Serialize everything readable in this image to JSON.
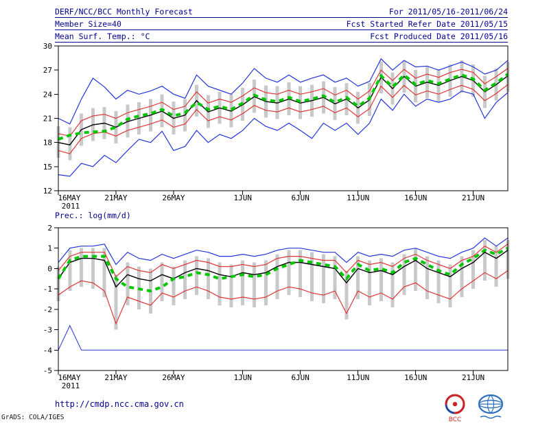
{
  "header": {
    "rows": [
      {
        "left": "DERF/NCC/BCC Monthly Forecast",
        "right": "For 2011/05/16-2011/06/24"
      },
      {
        "left": "Member Size=40",
        "right": "Fcst Started Refer Date 2011/05/15"
      },
      {
        "left": "Mean Surf. Temp.: °C",
        "right": "Fcst Produced Date 2011/05/16"
      }
    ]
  },
  "footer": {
    "url": "http://cmdp.ncc.cma.gov.cn",
    "credit": "GrADS: COLA/IGES",
    "bcc_label": "BCC"
  },
  "colors": {
    "header_text": "#000090",
    "ensemble_max_min": "#2233dd",
    "quartile_lines": "#e03535",
    "ensemble_mean": "#000000",
    "climatology_dashes": "#00c800",
    "spread_bars": "#c9c9c9"
  },
  "chart_data": [
    {
      "type": "line",
      "name": "temperature",
      "title": "Mean Surf. Temp.: °C",
      "ylim": [
        12,
        30
      ],
      "yticks": [
        30,
        27,
        24,
        21,
        18,
        15,
        12
      ],
      "x_count": 40,
      "x_range_note": "daily values 16 May 2011 through 24 Jun 2011",
      "xticks": [
        {
          "i": 0,
          "label": "16MAY",
          "sub": "2011"
        },
        {
          "i": 5,
          "label": "21MAY"
        },
        {
          "i": 10,
          "label": "26MAY"
        },
        {
          "i": 16,
          "label": "1JUN"
        },
        {
          "i": 21,
          "label": "6JUN"
        },
        {
          "i": 26,
          "label": "11JUN"
        },
        {
          "i": 31,
          "label": "16JUN"
        },
        {
          "i": 36,
          "label": "21JUN"
        }
      ],
      "bars": {
        "top": [
          20.0,
          19.9,
          21.6,
          22.3,
          22.4,
          21.9,
          22.7,
          23.0,
          23.4,
          24.0,
          23.1,
          23.4,
          25.2,
          23.9,
          24.3,
          24.0,
          24.8,
          25.8,
          25.1,
          25.0,
          25.5,
          25.0,
          25.2,
          25.6,
          24.9,
          25.4,
          24.3,
          25.4,
          28.1,
          26.7,
          28.2,
          27.0,
          27.5,
          27.1,
          27.7,
          28.2,
          27.7,
          26.3,
          27.2,
          28.0
        ],
        "bottom": [
          16.1,
          15.8,
          17.6,
          18.2,
          18.4,
          17.9,
          18.6,
          19.0,
          19.4,
          19.9,
          19.0,
          19.4,
          21.2,
          19.8,
          20.3,
          19.9,
          20.7,
          21.7,
          21.1,
          20.9,
          21.4,
          20.9,
          21.2,
          21.6,
          20.8,
          21.4,
          20.3,
          21.3,
          24.1,
          22.7,
          24.2,
          23.0,
          23.5,
          23.1,
          23.7,
          24.2,
          23.7,
          22.3,
          23.2,
          24.3
        ]
      },
      "series": [
        {
          "name": "ensemble-max",
          "color": "#2233dd",
          "width": 1.2,
          "values": [
            21.0,
            20.3,
            23.4,
            26.0,
            24.9,
            23.4,
            24.5,
            24.0,
            24.4,
            25.0,
            24.0,
            23.5,
            26.4,
            25.0,
            24.5,
            24.0,
            25.4,
            27.2,
            26.0,
            25.5,
            26.4,
            25.5,
            26.0,
            26.4,
            25.5,
            26.0,
            25.0,
            25.6,
            28.4,
            27.0,
            28.2,
            27.4,
            27.5,
            27.0,
            27.5,
            28.0,
            27.4,
            26.5,
            27.0,
            28.2
          ]
        },
        {
          "name": "ensemble-min",
          "color": "#2233dd",
          "width": 1.2,
          "values": [
            14.0,
            13.8,
            15.4,
            15.0,
            16.4,
            15.5,
            17.0,
            18.4,
            18.0,
            19.4,
            17.0,
            17.5,
            19.5,
            18.0,
            19.0,
            18.5,
            19.5,
            21.0,
            20.0,
            19.5,
            20.4,
            19.5,
            18.5,
            20.4,
            19.5,
            20.4,
            19.0,
            20.4,
            23.4,
            22.0,
            24.0,
            22.5,
            23.4,
            23.0,
            23.4,
            24.4,
            24.0,
            21.0,
            23.0,
            24.2
          ]
        },
        {
          "name": "upper-quartile",
          "color": "#e03535",
          "width": 1.2,
          "values": [
            19.1,
            18.8,
            20.7,
            21.3,
            21.5,
            21.0,
            21.7,
            22.1,
            22.5,
            23.0,
            22.1,
            22.5,
            24.3,
            22.9,
            23.4,
            23.0,
            23.8,
            24.8,
            24.2,
            24.0,
            24.5,
            24.0,
            24.3,
            24.7,
            23.9,
            24.5,
            23.4,
            24.4,
            27.0,
            25.7,
            27.1,
            26.0,
            26.5,
            26.1,
            26.7,
            27.1,
            26.7,
            25.3,
            26.2,
            27.2
          ]
        },
        {
          "name": "lower-quartile",
          "color": "#e03535",
          "width": 1.2,
          "values": [
            17.0,
            16.6,
            18.5,
            19.1,
            19.3,
            18.8,
            19.5,
            19.9,
            20.3,
            20.8,
            19.9,
            20.3,
            22.1,
            20.7,
            21.2,
            20.8,
            21.6,
            22.6,
            22.0,
            21.8,
            22.3,
            21.8,
            22.1,
            22.5,
            21.7,
            22.3,
            21.2,
            22.2,
            25.0,
            23.6,
            25.1,
            23.9,
            24.4,
            24.0,
            24.6,
            25.1,
            24.6,
            23.2,
            24.1,
            25.2
          ]
        },
        {
          "name": "ensemble-mean",
          "color": "#000000",
          "width": 1.4,
          "values": [
            18.0,
            17.7,
            19.6,
            20.2,
            20.4,
            19.9,
            20.6,
            21.0,
            21.4,
            21.9,
            21.0,
            21.4,
            23.2,
            21.8,
            22.3,
            21.9,
            22.7,
            23.7,
            23.1,
            22.9,
            23.4,
            22.9,
            23.2,
            23.6,
            22.8,
            23.4,
            22.3,
            23.3,
            26.1,
            24.7,
            26.2,
            25.0,
            25.5,
            25.1,
            25.7,
            26.2,
            25.7,
            24.3,
            25.2,
            26.3
          ]
        },
        {
          "name": "climatology",
          "color": "#00c800",
          "width": 4,
          "dash": "7 6",
          "values": [
            18.4,
            18.9,
            19.2,
            19.3,
            19.4,
            19.9,
            20.9,
            21.3,
            21.6,
            22.1,
            21.3,
            21.7,
            23.0,
            22.1,
            22.5,
            22.1,
            22.9,
            23.9,
            23.3,
            23.1,
            23.6,
            23.1,
            23.4,
            23.8,
            23.0,
            23.6,
            22.5,
            23.5,
            26.3,
            24.9,
            26.4,
            25.2,
            25.7,
            25.3,
            25.9,
            26.4,
            25.9,
            24.5,
            25.4,
            26.5
          ]
        }
      ]
    },
    {
      "type": "line",
      "name": "precipitation",
      "title": "Prec.: log(mm/d)",
      "ylim": [
        -5,
        2
      ],
      "yticks": [
        2,
        1,
        0,
        -1,
        -2,
        -3,
        -4,
        -5
      ],
      "x_count": 40,
      "x_range_note": "daily values 16 May 2011 through 24 Jun 2011",
      "xticks": [
        {
          "i": 0,
          "label": "16MAY",
          "sub": "2011"
        },
        {
          "i": 5,
          "label": "21MAY"
        },
        {
          "i": 10,
          "label": "26MAY"
        },
        {
          "i": 16,
          "label": "1JUN"
        },
        {
          "i": 21,
          "label": "6JUN"
        },
        {
          "i": 26,
          "label": "11JUN"
        },
        {
          "i": 31,
          "label": "16JUN"
        },
        {
          "i": 36,
          "label": "21JUN"
        }
      ],
      "bars": {
        "top": [
          0.1,
          0.9,
          1.0,
          1.0,
          1.0,
          -0.3,
          0.3,
          0.1,
          0.0,
          0.3,
          0.1,
          0.4,
          0.6,
          0.5,
          0.3,
          0.2,
          0.4,
          0.3,
          0.4,
          0.7,
          0.9,
          0.9,
          0.8,
          0.7,
          0.6,
          -0.1,
          0.6,
          0.4,
          0.5,
          0.3,
          0.7,
          1.0,
          0.6,
          0.4,
          0.2,
          0.6,
          0.9,
          1.4,
          1.1,
          1.4
        ],
        "bottom": [
          -1.6,
          -1.1,
          -0.9,
          -1.0,
          -1.4,
          -3.0,
          -1.8,
          -2.0,
          -2.2,
          -1.6,
          -1.8,
          -1.5,
          -1.3,
          -1.5,
          -1.8,
          -1.9,
          -1.8,
          -1.9,
          -1.8,
          -1.5,
          -1.3,
          -1.4,
          -1.6,
          -1.7,
          -1.5,
          -2.5,
          -1.5,
          -1.8,
          -1.6,
          -1.9,
          -1.3,
          -1.1,
          -1.5,
          -1.7,
          -1.9,
          -1.4,
          -1.0,
          -0.6,
          -0.9,
          -0.5
        ]
      },
      "series": [
        {
          "name": "ensemble-max",
          "color": "#2233dd",
          "width": 1.2,
          "values": [
            0.3,
            1.0,
            1.1,
            1.1,
            1.2,
            0.2,
            0.8,
            0.5,
            0.4,
            0.7,
            0.5,
            0.7,
            0.9,
            0.8,
            0.6,
            0.6,
            0.7,
            0.6,
            0.7,
            0.9,
            1.0,
            1.0,
            0.9,
            0.8,
            0.8,
            0.3,
            0.8,
            0.6,
            0.7,
            0.6,
            0.9,
            1.0,
            0.8,
            0.6,
            0.5,
            0.8,
            1.0,
            1.5,
            1.1,
            1.5
          ]
        },
        {
          "name": "ensemble-min",
          "color": "#2233dd",
          "width": 1,
          "values": [
            -4.0,
            -2.8,
            -4.0,
            -4.0,
            -4.0,
            -4.0,
            -4.0,
            -4.0,
            -4.0,
            -4.0,
            -4.0,
            -4.0,
            -4.0,
            -4.0,
            -4.0,
            -4.0,
            -4.0,
            -4.0,
            -4.0,
            -4.0,
            -4.0,
            -4.0,
            -4.0,
            -4.0,
            -4.0,
            -4.0,
            -4.0,
            -4.0,
            -4.0,
            -4.0,
            -4.0,
            -4.0,
            -4.0,
            -4.0,
            -4.0,
            -4.0,
            -4.0,
            -4.0,
            -4.0,
            -4.0
          ]
        },
        {
          "name": "upper-quartile",
          "color": "#e03535",
          "width": 1.2,
          "values": [
            -0.1,
            0.6,
            0.8,
            0.8,
            0.8,
            -0.4,
            0.1,
            -0.1,
            -0.2,
            0.2,
            0.0,
            0.2,
            0.4,
            0.3,
            0.1,
            0.1,
            0.2,
            0.1,
            0.2,
            0.5,
            0.6,
            0.6,
            0.5,
            0.4,
            0.4,
            -0.2,
            0.4,
            0.2,
            0.3,
            0.1,
            0.5,
            0.7,
            0.4,
            0.2,
            0.0,
            0.4,
            0.6,
            1.1,
            0.8,
            1.2
          ]
        },
        {
          "name": "lower-quartile",
          "color": "#e03535",
          "width": 1.2,
          "values": [
            -1.3,
            -0.9,
            -0.6,
            -0.7,
            -1.1,
            -2.7,
            -1.4,
            -1.6,
            -1.8,
            -1.2,
            -1.4,
            -1.1,
            -0.9,
            -1.1,
            -1.4,
            -1.5,
            -1.4,
            -1.5,
            -1.4,
            -1.1,
            -0.9,
            -1.0,
            -1.2,
            -1.3,
            -1.1,
            -2.2,
            -1.1,
            -1.4,
            -1.2,
            -1.5,
            -0.9,
            -0.7,
            -1.1,
            -1.3,
            -1.5,
            -1.0,
            -0.6,
            -0.2,
            -0.5,
            -0.1
          ]
        },
        {
          "name": "ensemble-mean",
          "color": "#000000",
          "width": 1.4,
          "values": [
            -0.5,
            0.3,
            0.5,
            0.5,
            0.4,
            -0.9,
            -0.3,
            -0.5,
            -0.6,
            -0.3,
            -0.5,
            -0.2,
            0.0,
            -0.1,
            -0.3,
            -0.4,
            -0.2,
            -0.3,
            -0.2,
            0.1,
            0.3,
            0.3,
            0.2,
            0.1,
            0.0,
            -0.7,
            0.0,
            -0.2,
            -0.1,
            -0.3,
            0.1,
            0.4,
            0.0,
            -0.2,
            -0.4,
            0.0,
            0.3,
            0.8,
            0.5,
            0.9
          ]
        },
        {
          "name": "climatology",
          "color": "#00c800",
          "width": 4,
          "dash": "7 6",
          "values": [
            -0.5,
            0.4,
            0.6,
            0.6,
            0.6,
            -0.5,
            -0.9,
            -1.0,
            -1.1,
            -0.9,
            -0.5,
            -0.4,
            -0.2,
            -0.3,
            -0.5,
            -0.4,
            -0.3,
            -0.4,
            -0.3,
            0.0,
            0.2,
            0.4,
            0.3,
            0.2,
            0.1,
            -0.5,
            0.2,
            -0.1,
            0.0,
            -0.2,
            0.3,
            0.5,
            0.2,
            -0.1,
            -0.3,
            0.2,
            0.5,
            0.9,
            0.7,
            1.0
          ]
        }
      ]
    }
  ]
}
